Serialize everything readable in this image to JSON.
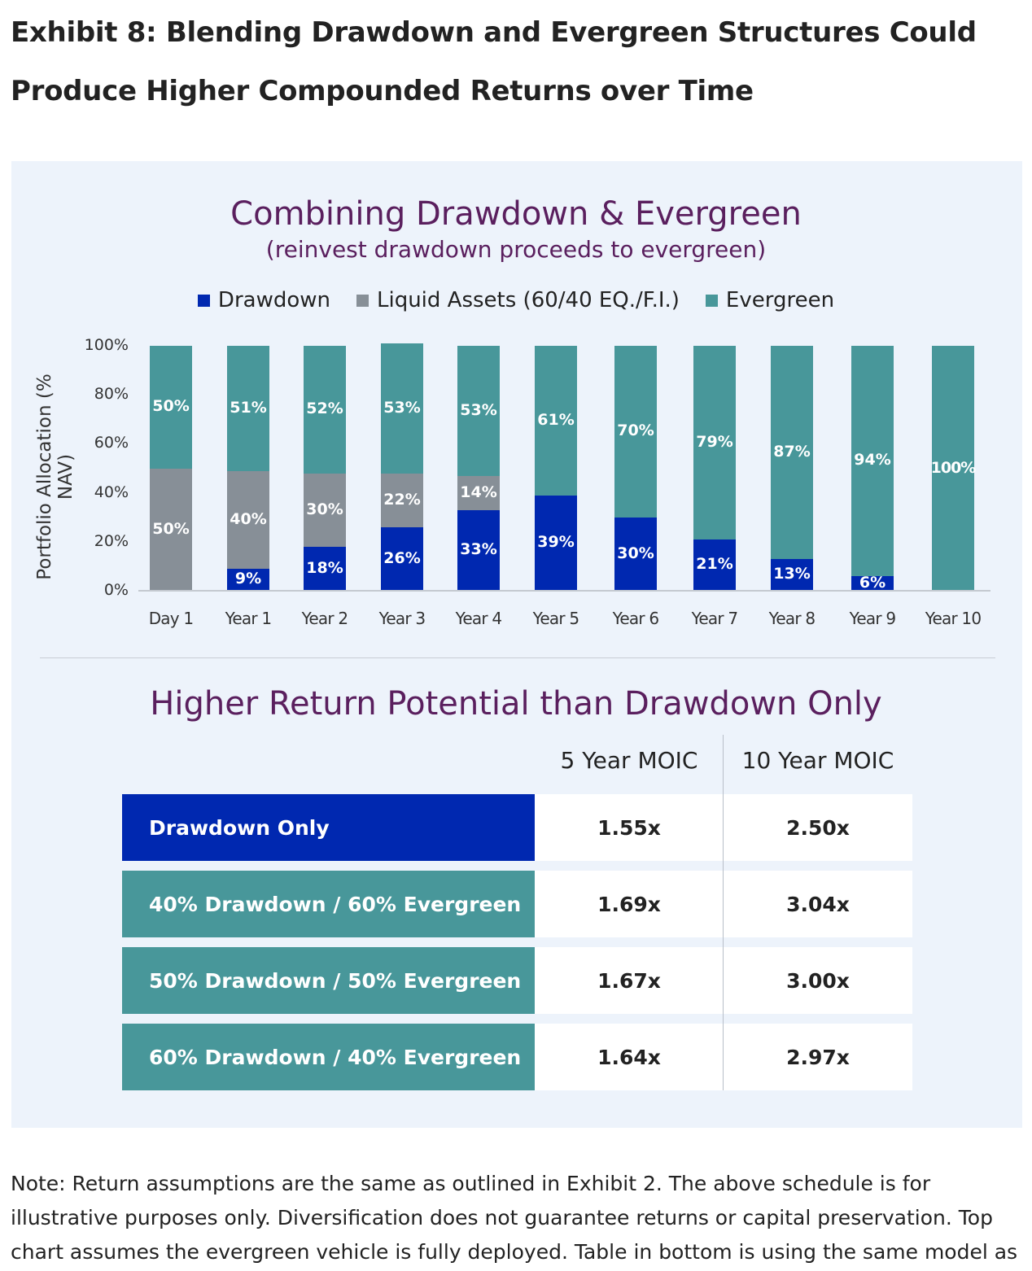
{
  "exhibit_title": "Exhibit 8: Blending Drawdown and Evergreen Structures Could Produce Higher Compounded Returns over Time",
  "colors": {
    "drawdown": "#0028b0",
    "liquid": "#878f97",
    "evergreen": "#48979a",
    "panel": "#edf3fb",
    "title": "#5a1f5e"
  },
  "chart_data": {
    "type": "bar",
    "stacked": true,
    "title": "Combining Drawdown & Evergreen",
    "subtitle": "(reinvest drawdown proceeds to evergreen)",
    "ylabel": "Portfolio Allocation (% NAV)",
    "xlabel": "",
    "ylim": [
      0,
      100
    ],
    "yticks": [
      "0%",
      "20%",
      "40%",
      "60%",
      "80%",
      "100%"
    ],
    "legend_position": "top",
    "categories": [
      "Day 1",
      "Year 1",
      "Year 2",
      "Year 3",
      "Year 4",
      "Year 5",
      "Year 6",
      "Year 7",
      "Year 8",
      "Year 9",
      "Year 10"
    ],
    "series": [
      {
        "name": "Drawdown",
        "key": "drawdown",
        "values": [
          0,
          9,
          18,
          26,
          33,
          39,
          30,
          21,
          13,
          6,
          0
        ]
      },
      {
        "name": "Liquid Assets (60/40 EQ./F.I.)",
        "key": "liquid",
        "values": [
          50,
          40,
          30,
          22,
          14,
          0,
          0,
          0,
          0,
          0,
          0
        ]
      },
      {
        "name": "Evergreen",
        "key": "evergreen",
        "values": [
          50,
          51,
          52,
          53,
          53,
          61,
          70,
          79,
          87,
          94,
          100
        ]
      }
    ]
  },
  "table": {
    "title": "Higher Return Potential than Drawdown Only",
    "headers": [
      "5 Year MOIC",
      "10 Year MOIC"
    ],
    "rows": [
      {
        "label": "Drawdown Only",
        "color": "#0028b0",
        "v5": "1.55x",
        "v10": "2.50x"
      },
      {
        "label": "40% Drawdown / 60% Evergreen",
        "color": "#48979a",
        "v5": "1.69x",
        "v10": "3.04x"
      },
      {
        "label": "50% Drawdown / 50% Evergreen",
        "color": "#48979a",
        "v5": "1.67x",
        "v10": "3.00x"
      },
      {
        "label": "60% Drawdown / 40% Evergreen",
        "color": "#48979a",
        "v5": "1.64x",
        "v10": "2.97x"
      }
    ]
  },
  "note": "Note: Return assumptions are the same as outlined in Exhibit 2. The above schedule is for illustrative purposes only. Diversification does not guarantee returns or capital preservation. Top chart assumes the evergreen vehicle is fully deployed. Table in bottom is using the same model as"
}
